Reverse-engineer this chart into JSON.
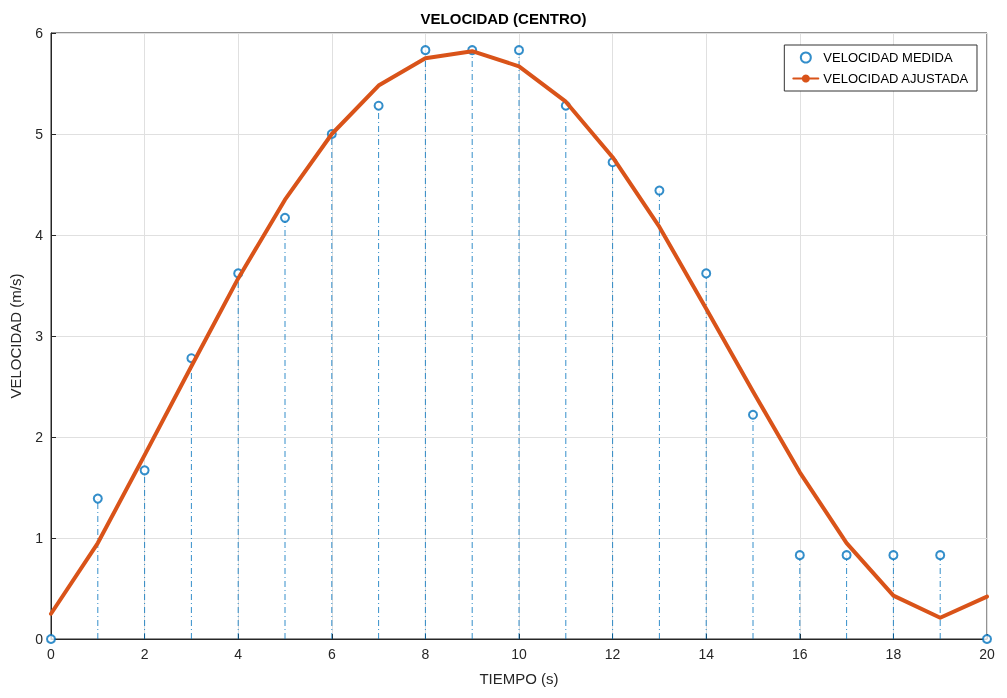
{
  "chart_data": {
    "type": "line",
    "title": "VELOCIDAD (CENTRO)",
    "xlabel": "TIEMPO (s)",
    "ylabel": "VELOCIDAD (m/s)",
    "x": [
      0,
      1,
      2,
      3,
      4,
      5,
      6,
      7,
      8,
      9,
      10,
      11,
      12,
      13,
      14,
      15,
      16,
      17,
      18,
      19,
      20
    ],
    "series": [
      {
        "name": "VELOCIDAD MEDIDA",
        "type": "lollipop",
        "color": "#0072bd",
        "marker": "circle",
        "line_style": "dashed",
        "values": [
          0,
          1.39,
          1.67,
          2.78,
          3.62,
          4.17,
          5.0,
          5.28,
          5.83,
          5.83,
          5.83,
          5.28,
          4.72,
          4.44,
          3.62,
          2.22,
          0.83,
          0.83,
          0.83,
          0.83,
          0
        ]
      },
      {
        "name": "VELOCIDAD AJUSTADA",
        "color": "#d95319",
        "marker": "none",
        "line_style": "solid",
        "values": [
          0.25,
          0.95,
          1.82,
          2.7,
          3.57,
          4.35,
          5.0,
          5.48,
          5.75,
          5.82,
          5.67,
          5.32,
          4.77,
          4.08,
          3.27,
          2.45,
          1.65,
          0.95,
          0.43,
          0.21,
          0.42
        ]
      }
    ],
    "xlim": [
      0,
      20
    ],
    "xticks": [
      0,
      2,
      4,
      6,
      8,
      10,
      12,
      14,
      16,
      18,
      20
    ],
    "ylim": [
      0,
      6
    ],
    "yticks": [
      0,
      1,
      2,
      3,
      4,
      5,
      6
    ],
    "grid": true,
    "legend": "top right"
  }
}
